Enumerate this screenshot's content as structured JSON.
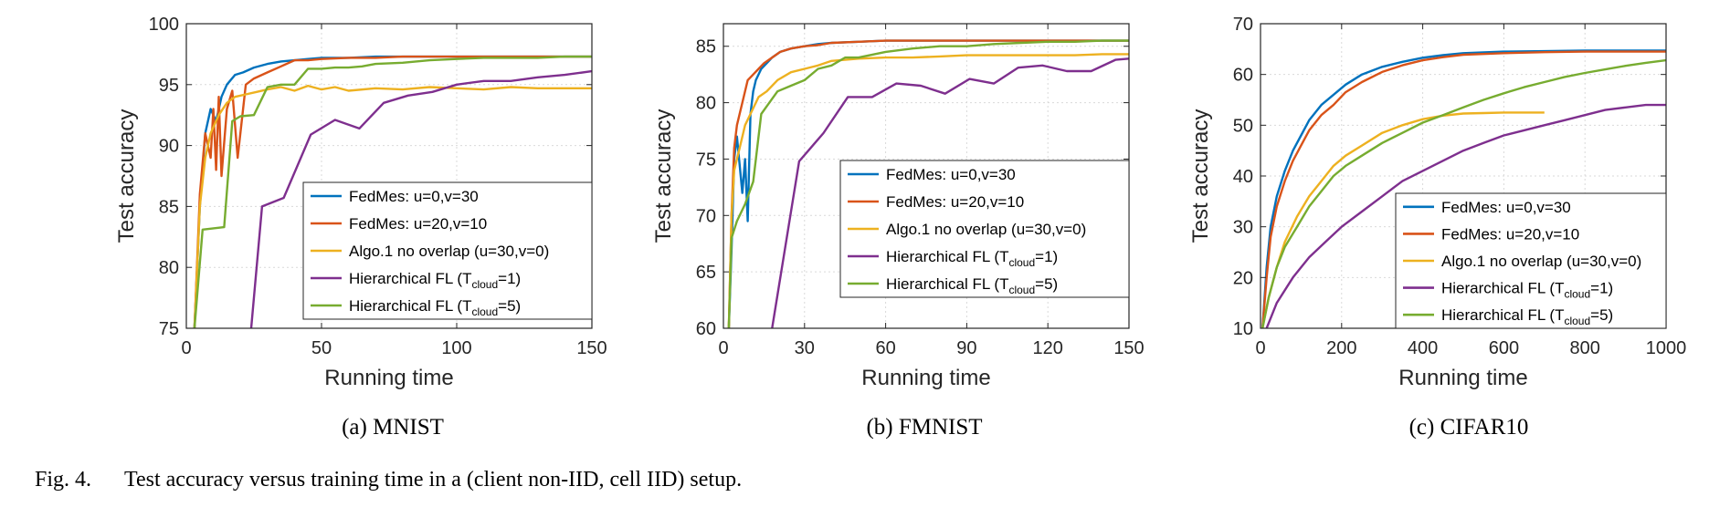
{
  "colors": {
    "fedmes_0_30": "#0072bd",
    "fedmes_20_10": "#d95319",
    "algo1": "#edb120",
    "hier1": "#7e2f8e",
    "hier5": "#77ac30"
  },
  "figure_caption": {
    "label": "Fig. 4.",
    "text": "Test accuracy versus training time in a (client non-IID, cell IID) setup."
  },
  "chart_data": [
    {
      "type": "line",
      "caption": "(a)  MNIST",
      "xlabel": "Running time",
      "ylabel": "Test accuracy",
      "xlim": [
        0,
        150
      ],
      "ylim": [
        75,
        100
      ],
      "xticks": [
        0,
        50,
        100,
        150
      ],
      "yticks": [
        75,
        80,
        85,
        90,
        95,
        100
      ],
      "grid": true,
      "legend": "lower-right",
      "series": [
        {
          "name": "FedMes: u=0,v=30",
          "sub": "",
          "name_suffix": "",
          "color_key": "fedmes_0_30",
          "x": [
            3,
            5,
            7,
            9,
            11,
            13,
            15,
            18,
            21,
            25,
            30,
            35,
            40,
            45,
            50,
            60,
            70,
            80,
            100,
            120,
            150
          ],
          "y": [
            75,
            85,
            91,
            93,
            92,
            94,
            95,
            95.8,
            96,
            96.4,
            96.7,
            96.9,
            97,
            97.1,
            97.2,
            97.2,
            97.3,
            97.3,
            97.3,
            97.3,
            97.3
          ]
        },
        {
          "name": "FedMes: u=20,v=10",
          "sub": "",
          "name_suffix": "",
          "color_key": "fedmes_20_10",
          "x": [
            3,
            5,
            7,
            9,
            10,
            11,
            12,
            13,
            15,
            17,
            19,
            22,
            25,
            30,
            35,
            40,
            45,
            50,
            60,
            70,
            80,
            100,
            120,
            150
          ],
          "y": [
            75,
            86,
            91,
            89,
            93,
            88,
            94,
            87.5,
            93,
            94.5,
            89,
            95,
            95.5,
            96,
            96.5,
            97,
            97,
            97.1,
            97.2,
            97.2,
            97.3,
            97.3,
            97.3,
            97.3
          ]
        },
        {
          "name": "Algo.1 no overlap (u=30,v=0)",
          "sub": "",
          "name_suffix": "",
          "color_key": "algo1",
          "x": [
            3,
            5,
            7,
            9,
            12,
            15,
            18,
            22,
            26,
            30,
            35,
            40,
            45,
            50,
            55,
            60,
            70,
            80,
            90,
            100,
            110,
            120,
            130,
            140,
            150
          ],
          "y": [
            75,
            85,
            89,
            91,
            92.5,
            93.5,
            94,
            94.2,
            94.4,
            94.6,
            94.8,
            94.5,
            94.9,
            94.6,
            94.8,
            94.5,
            94.7,
            94.6,
            94.8,
            94.7,
            94.6,
            94.8,
            94.7,
            94.7,
            94.7
          ]
        },
        {
          "name": "Hierarchical FL (T",
          "sub": "cloud",
          "name_suffix": "=1)",
          "color_key": "hier1",
          "x": [
            24,
            28,
            36,
            46,
            55,
            64,
            73,
            82,
            91,
            100,
            110,
            120,
            130,
            140,
            150
          ],
          "y": [
            75,
            85,
            85.7,
            90.9,
            92.1,
            91.4,
            93.5,
            94.1,
            94.4,
            95,
            95.3,
            95.3,
            95.6,
            95.8,
            96.1
          ]
        },
        {
          "name": "Hierarchical FL (T",
          "sub": "cloud",
          "name_suffix": "=5)",
          "color_key": "hier5",
          "x": [
            3,
            6,
            10,
            14,
            17,
            20,
            25,
            30,
            35,
            40,
            45,
            50,
            55,
            60,
            65,
            70,
            80,
            90,
            100,
            110,
            120,
            130,
            140,
            150
          ],
          "y": [
            75,
            83.1,
            83.2,
            83.3,
            92,
            92.4,
            92.5,
            94.8,
            95,
            95,
            96.3,
            96.3,
            96.4,
            96.4,
            96.5,
            96.7,
            96.8,
            97,
            97.1,
            97.2,
            97.2,
            97.2,
            97.3,
            97.3
          ]
        }
      ]
    },
    {
      "type": "line",
      "caption": "(b)  FMNIST",
      "xlabel": "Running time",
      "ylabel": "Test accuracy",
      "xlim": [
        0,
        150
      ],
      "ylim": [
        60,
        87
      ],
      "xticks": [
        0,
        30,
        60,
        90,
        120,
        150
      ],
      "yticks": [
        60,
        65,
        70,
        75,
        80,
        85
      ],
      "grid": true,
      "legend": "center-right",
      "series": [
        {
          "name": "FedMes: u=0,v=30",
          "sub": "",
          "name_suffix": "",
          "color_key": "fedmes_0_30",
          "x": [
            2,
            3,
            4,
            5,
            7,
            8,
            9,
            10,
            11,
            12,
            14,
            16,
            18,
            21,
            25,
            30,
            35,
            40,
            50,
            60,
            70,
            90,
            110,
            130,
            150
          ],
          "y": [
            60,
            67,
            75,
            77,
            72,
            75,
            69.5,
            79,
            81,
            82,
            83,
            83.5,
            84,
            84.5,
            84.8,
            85,
            85.2,
            85.3,
            85.4,
            85.5,
            85.5,
            85.5,
            85.5,
            85.5,
            85.5
          ]
        },
        {
          "name": "FedMes: u=20,v=10",
          "sub": "",
          "name_suffix": "",
          "color_key": "fedmes_20_10",
          "x": [
            2,
            3,
            4,
            5,
            7,
            9,
            11,
            13,
            15,
            18,
            21,
            25,
            30,
            35,
            40,
            50,
            60,
            70,
            90,
            110,
            130,
            150
          ],
          "y": [
            60,
            70,
            76,
            78,
            80,
            82,
            82.5,
            83,
            83.5,
            84,
            84.5,
            84.8,
            85,
            85.1,
            85.3,
            85.4,
            85.5,
            85.5,
            85.5,
            85.5,
            85.5,
            85.5
          ]
        },
        {
          "name": "Algo.1 no overlap (u=30,v=0)",
          "sub": "",
          "name_suffix": "",
          "color_key": "algo1",
          "x": [
            2,
            3,
            4,
            6,
            8,
            10,
            13,
            16,
            20,
            25,
            30,
            35,
            40,
            50,
            60,
            70,
            80,
            90,
            100,
            110,
            120,
            130,
            140,
            150
          ],
          "y": [
            60,
            70,
            74,
            76,
            78,
            79,
            80.5,
            81,
            82,
            82.7,
            83,
            83.3,
            83.7,
            83.9,
            84,
            84,
            84.1,
            84.2,
            84.2,
            84.2,
            84.2,
            84.2,
            84.3,
            84.3
          ]
        },
        {
          "name": "Hierarchical FL (T",
          "sub": "cloud",
          "name_suffix": "=1)",
          "color_key": "hier1",
          "x": [
            18,
            28,
            37,
            46,
            55,
            64,
            73,
            82,
            91,
            100,
            109,
            118,
            127,
            136,
            145,
            150
          ],
          "y": [
            60,
            74.8,
            77.3,
            80.5,
            80.5,
            81.7,
            81.5,
            80.8,
            82.1,
            81.7,
            83.1,
            83.3,
            82.8,
            82.8,
            83.8,
            83.9
          ]
        },
        {
          "name": "Hierarchical FL (T",
          "sub": "cloud",
          "name_suffix": "=5)",
          "color_key": "hier5",
          "x": [
            2,
            3,
            5,
            8,
            11,
            14,
            17,
            20,
            25,
            30,
            35,
            40,
            45,
            50,
            60,
            70,
            80,
            90,
            100,
            110,
            120,
            130,
            140,
            150
          ],
          "y": [
            60,
            68,
            69.5,
            71,
            73,
            79,
            80,
            81,
            81.5,
            82,
            83,
            83.3,
            84,
            84,
            84.5,
            84.8,
            85,
            85,
            85.2,
            85.3,
            85.4,
            85.4,
            85.5,
            85.5
          ]
        }
      ]
    },
    {
      "type": "line",
      "caption": "(c)  CIFAR10",
      "xlabel": "Running time",
      "ylabel": "Test accuracy",
      "xlim": [
        0,
        1000
      ],
      "ylim": [
        10,
        70
      ],
      "xticks": [
        0,
        200,
        400,
        600,
        800,
        1000
      ],
      "yticks": [
        10,
        20,
        30,
        40,
        50,
        60,
        70
      ],
      "grid": true,
      "legend": "lower-right",
      "series": [
        {
          "name": "FedMes: u=0,v=30",
          "sub": "",
          "name_suffix": "",
          "color_key": "fedmes_0_30",
          "x": [
            5,
            15,
            25,
            40,
            60,
            80,
            100,
            120,
            150,
            180,
            210,
            250,
            300,
            350,
            400,
            450,
            500,
            600,
            700,
            800,
            900,
            1000
          ],
          "y": [
            10,
            22,
            30,
            36,
            41,
            45,
            48,
            51,
            54,
            56,
            58,
            60,
            61.5,
            62.5,
            63.3,
            63.8,
            64.2,
            64.5,
            64.6,
            64.7,
            64.7,
            64.7
          ]
        },
        {
          "name": "FedMes: u=20,v=10",
          "sub": "",
          "name_suffix": "",
          "color_key": "fedmes_20_10",
          "x": [
            5,
            15,
            25,
            40,
            60,
            80,
            100,
            120,
            150,
            180,
            210,
            250,
            300,
            350,
            400,
            450,
            500,
            600,
            700,
            800,
            900,
            1000
          ],
          "y": [
            10,
            20,
            28,
            34,
            39,
            43,
            46,
            49,
            52,
            54,
            56.5,
            58.5,
            60.5,
            61.8,
            62.8,
            63.4,
            63.9,
            64.2,
            64.4,
            64.5,
            64.5,
            64.5
          ]
        },
        {
          "name": "Algo.1 no overlap (u=30,v=0)",
          "sub": "",
          "name_suffix": "",
          "color_key": "algo1",
          "x": [
            5,
            20,
            40,
            60,
            90,
            120,
            150,
            180,
            210,
            250,
            300,
            350,
            400,
            450,
            500,
            550,
            600,
            650,
            700
          ],
          "y": [
            10,
            16,
            22,
            27,
            32,
            36,
            39,
            42,
            44,
            46,
            48.5,
            50,
            51.2,
            51.9,
            52.3,
            52.4,
            52.5,
            52.5,
            52.5
          ]
        },
        {
          "name": "Hierarchical FL (T",
          "sub": "cloud",
          "name_suffix": "=1)",
          "color_key": "hier1",
          "x": [
            15,
            40,
            80,
            120,
            160,
            200,
            250,
            300,
            350,
            400,
            450,
            500,
            550,
            600,
            650,
            700,
            750,
            800,
            850,
            900,
            950,
            1000
          ],
          "y": [
            10,
            15,
            20,
            24,
            27,
            30,
            33,
            36,
            39,
            41,
            43,
            45,
            46.5,
            48,
            49,
            50,
            51,
            52,
            53,
            53.5,
            54,
            54
          ]
        },
        {
          "name": "Hierarchical FL (T",
          "sub": "cloud",
          "name_suffix": "=5)",
          "color_key": "hier5",
          "x": [
            5,
            20,
            40,
            60,
            90,
            120,
            150,
            180,
            210,
            250,
            300,
            350,
            400,
            450,
            500,
            550,
            600,
            650,
            700,
            750,
            800,
            850,
            900,
            950,
            1000
          ],
          "y": [
            10,
            16,
            22,
            26,
            30,
            34,
            37,
            40,
            42,
            44,
            46.5,
            48.5,
            50.5,
            52,
            53.5,
            55,
            56.3,
            57.5,
            58.5,
            59.5,
            60.3,
            61,
            61.7,
            62.3,
            62.8
          ]
        }
      ]
    }
  ]
}
